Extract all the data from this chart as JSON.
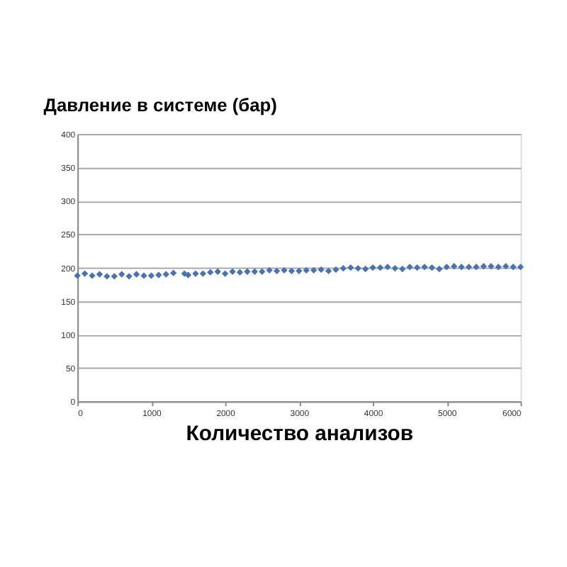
{
  "chart_data": {
    "type": "scatter",
    "title": "Давление в системе (бар)",
    "xlabel": "Количество анализов",
    "x": [
      0,
      100,
      200,
      300,
      400,
      500,
      600,
      700,
      800,
      900,
      1000,
      1100,
      1200,
      1300,
      1450,
      1500,
      1600,
      1700,
      1800,
      1900,
      2000,
      2100,
      2200,
      2300,
      2400,
      2500,
      2600,
      2700,
      2800,
      2900,
      3000,
      3100,
      3200,
      3300,
      3400,
      3500,
      3600,
      3700,
      3800,
      3900,
      4000,
      4100,
      4200,
      4300,
      4400,
      4500,
      4600,
      4700,
      4800,
      4900,
      5000,
      5100,
      5200,
      5300,
      5400,
      5500,
      5600,
      5700,
      5800,
      5900,
      6000
    ],
    "values": [
      188,
      191,
      188,
      190,
      187,
      187,
      190,
      187,
      190,
      188,
      188,
      189,
      190,
      192,
      191,
      189,
      191,
      191,
      193,
      194,
      191,
      194,
      193,
      194,
      194,
      194,
      196,
      195,
      196,
      195,
      195,
      196,
      196,
      197,
      195,
      197,
      199,
      200,
      199,
      198,
      200,
      200,
      201,
      199,
      198,
      201,
      200,
      201,
      200,
      198,
      201,
      202,
      201,
      201,
      201,
      202,
      202,
      201,
      202,
      201,
      201
    ],
    "color": "#4a72b0",
    "marker": "diamond",
    "xlim": [
      0,
      6000
    ],
    "xticks": [
      0,
      1000,
      2000,
      3000,
      4000,
      5000,
      6000
    ],
    "ylim": [
      0,
      400
    ],
    "yticks": [
      0,
      50,
      100,
      150,
      200,
      250,
      300,
      350,
      400
    ],
    "grid": "y"
  }
}
